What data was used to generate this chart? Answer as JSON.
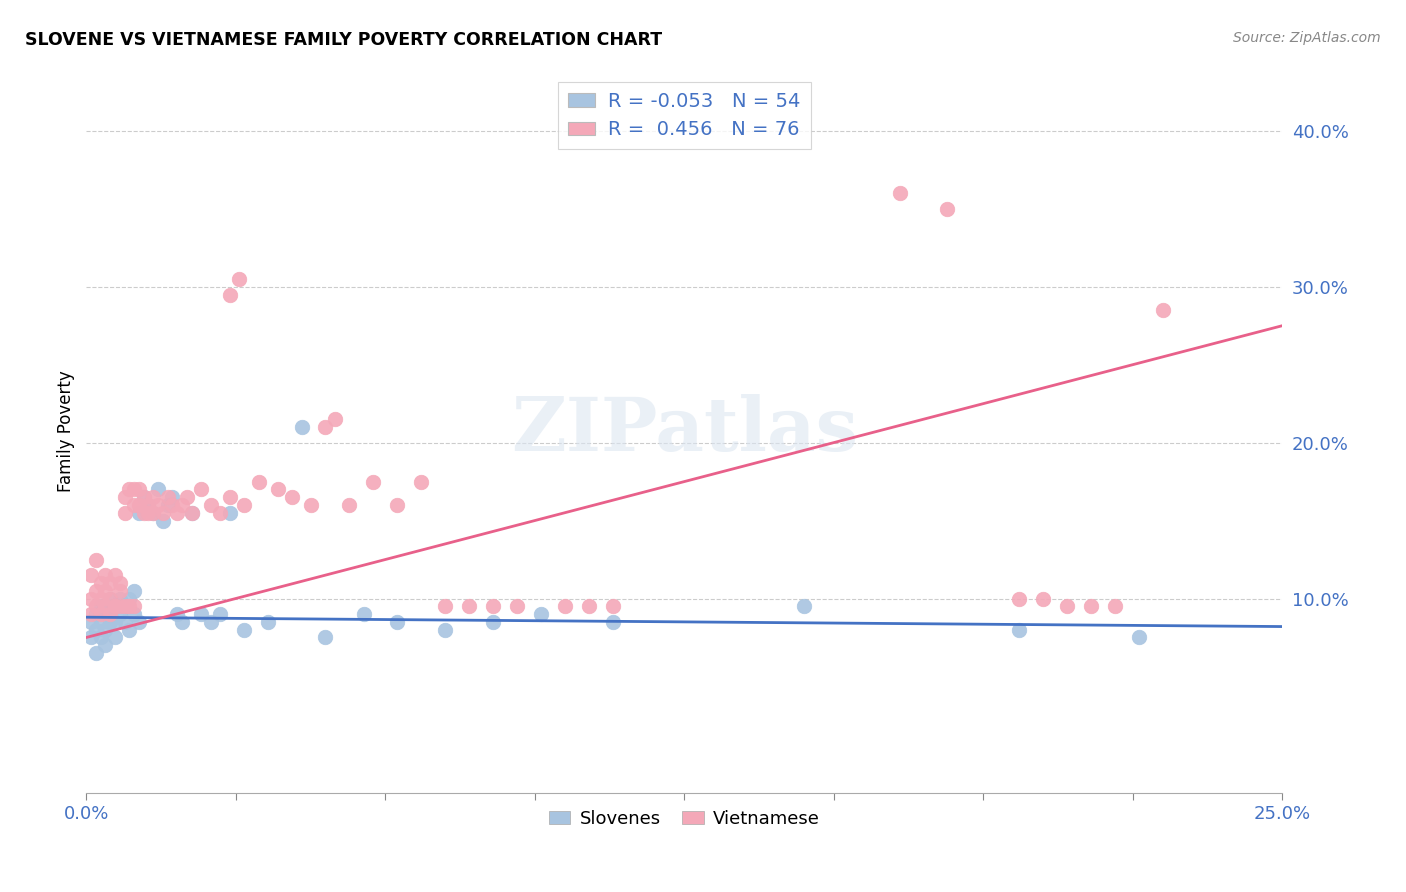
{
  "title": "SLOVENE VS VIETNAMESE FAMILY POVERTY CORRELATION CHART",
  "source": "Source: ZipAtlas.com",
  "ylabel": "Family Poverty",
  "ytick_labels": [
    "10.0%",
    "20.0%",
    "30.0%",
    "40.0%"
  ],
  "ytick_values": [
    0.1,
    0.2,
    0.3,
    0.4
  ],
  "xmin": 0.0,
  "xmax": 0.25,
  "ymin": -0.025,
  "ymax": 0.44,
  "slovene_color": "#a8c4e0",
  "vietnamese_color": "#f4a8b8",
  "slovene_line_color": "#4472c4",
  "vietnamese_line_color": "#e8608a",
  "watermark_text": "ZIPatlas",
  "slovene_R": -0.053,
  "slovene_N": 54,
  "vietnamese_R": 0.456,
  "vietnamese_N": 76,
  "slovene_line_x0": 0.0,
  "slovene_line_y0": 0.088,
  "slovene_line_x1": 0.25,
  "slovene_line_y1": 0.082,
  "vietnamese_line_x0": 0.0,
  "vietnamese_line_y0": 0.075,
  "vietnamese_line_x1": 0.25,
  "vietnamese_line_y1": 0.275,
  "slovene_x": [
    0.001,
    0.001,
    0.002,
    0.002,
    0.002,
    0.003,
    0.003,
    0.003,
    0.004,
    0.004,
    0.004,
    0.005,
    0.005,
    0.005,
    0.006,
    0.006,
    0.006,
    0.007,
    0.007,
    0.008,
    0.008,
    0.009,
    0.009,
    0.01,
    0.01,
    0.011,
    0.011,
    0.012,
    0.013,
    0.014,
    0.015,
    0.016,
    0.017,
    0.018,
    0.019,
    0.02,
    0.022,
    0.024,
    0.026,
    0.028,
    0.03,
    0.033,
    0.038,
    0.045,
    0.05,
    0.058,
    0.065,
    0.075,
    0.085,
    0.095,
    0.11,
    0.15,
    0.195,
    0.22
  ],
  "slovene_y": [
    0.085,
    0.075,
    0.09,
    0.08,
    0.065,
    0.095,
    0.075,
    0.085,
    0.08,
    0.09,
    0.07,
    0.095,
    0.085,
    0.1,
    0.085,
    0.095,
    0.075,
    0.09,
    0.1,
    0.085,
    0.095,
    0.08,
    0.1,
    0.09,
    0.105,
    0.085,
    0.155,
    0.165,
    0.16,
    0.155,
    0.17,
    0.15,
    0.16,
    0.165,
    0.09,
    0.085,
    0.155,
    0.09,
    0.085,
    0.09,
    0.155,
    0.08,
    0.085,
    0.21,
    0.075,
    0.09,
    0.085,
    0.08,
    0.085,
    0.09,
    0.085,
    0.095,
    0.08,
    0.075
  ],
  "vietnamese_x": [
    0.001,
    0.001,
    0.001,
    0.002,
    0.002,
    0.002,
    0.003,
    0.003,
    0.003,
    0.004,
    0.004,
    0.004,
    0.005,
    0.005,
    0.005,
    0.006,
    0.006,
    0.007,
    0.007,
    0.007,
    0.008,
    0.008,
    0.008,
    0.009,
    0.009,
    0.01,
    0.01,
    0.01,
    0.011,
    0.011,
    0.012,
    0.012,
    0.013,
    0.013,
    0.014,
    0.014,
    0.015,
    0.016,
    0.017,
    0.018,
    0.019,
    0.02,
    0.021,
    0.022,
    0.024,
    0.026,
    0.028,
    0.03,
    0.033,
    0.036,
    0.04,
    0.043,
    0.047,
    0.05,
    0.055,
    0.06,
    0.065,
    0.07,
    0.075,
    0.08,
    0.085,
    0.09,
    0.03,
    0.032,
    0.052,
    0.1,
    0.105,
    0.11,
    0.17,
    0.18,
    0.195,
    0.2,
    0.205,
    0.21,
    0.215,
    0.225
  ],
  "vietnamese_y": [
    0.115,
    0.1,
    0.09,
    0.105,
    0.095,
    0.125,
    0.11,
    0.1,
    0.09,
    0.115,
    0.095,
    0.105,
    0.1,
    0.11,
    0.09,
    0.115,
    0.095,
    0.11,
    0.095,
    0.105,
    0.165,
    0.155,
    0.095,
    0.17,
    0.095,
    0.16,
    0.17,
    0.095,
    0.16,
    0.17,
    0.155,
    0.165,
    0.16,
    0.155,
    0.165,
    0.155,
    0.16,
    0.155,
    0.165,
    0.16,
    0.155,
    0.16,
    0.165,
    0.155,
    0.17,
    0.16,
    0.155,
    0.165,
    0.16,
    0.175,
    0.17,
    0.165,
    0.16,
    0.21,
    0.16,
    0.175,
    0.16,
    0.175,
    0.095,
    0.095,
    0.095,
    0.095,
    0.295,
    0.305,
    0.215,
    0.095,
    0.095,
    0.095,
    0.36,
    0.35,
    0.1,
    0.1,
    0.095,
    0.095,
    0.095,
    0.285
  ]
}
